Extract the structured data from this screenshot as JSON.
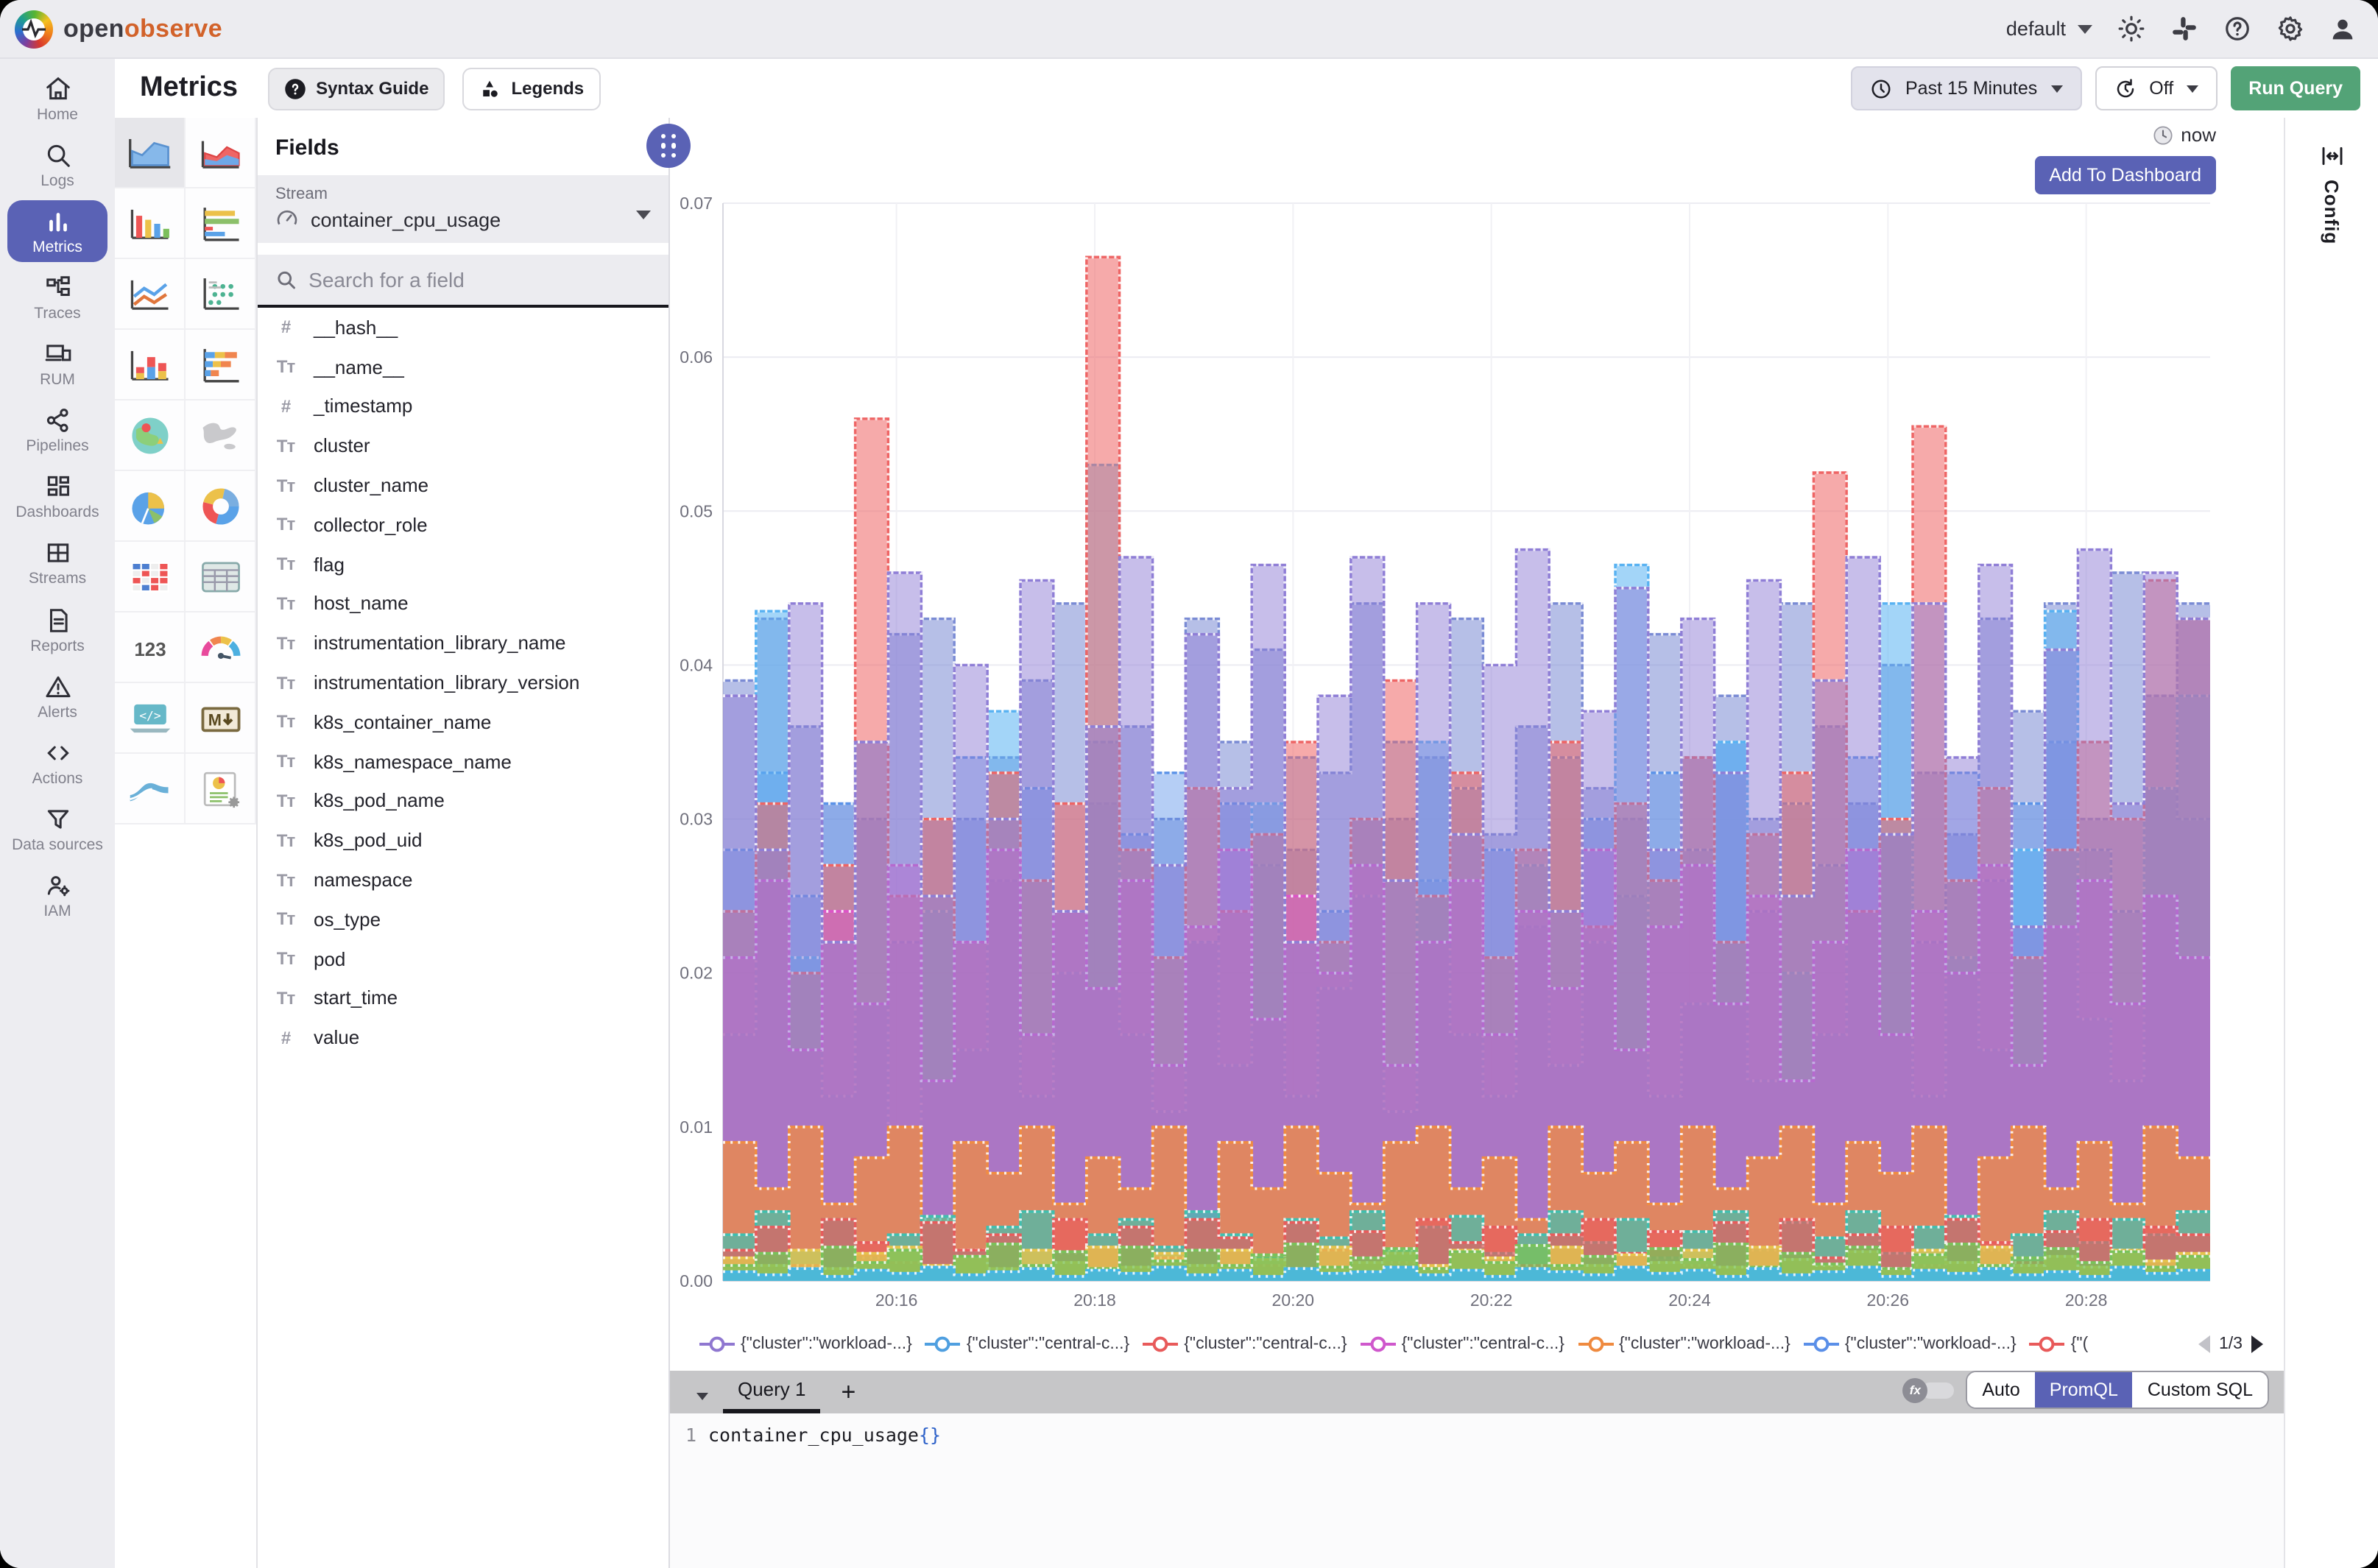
{
  "topbar": {
    "brand_open": "open",
    "brand_observe": "observe",
    "org": "default"
  },
  "sidebar": {
    "items": [
      {
        "label": "Home",
        "icon": "home",
        "selected": false
      },
      {
        "label": "Logs",
        "icon": "logs",
        "selected": false
      },
      {
        "label": "Metrics",
        "icon": "metrics",
        "selected": true
      },
      {
        "label": "Traces",
        "icon": "traces",
        "selected": false
      },
      {
        "label": "RUM",
        "icon": "rum",
        "selected": false
      },
      {
        "label": "Pipelines",
        "icon": "pipelines",
        "selected": false
      },
      {
        "label": "Dashboards",
        "icon": "dashboards",
        "selected": false
      },
      {
        "label": "Streams",
        "icon": "streams",
        "selected": false
      },
      {
        "label": "Reports",
        "icon": "reports",
        "selected": false
      },
      {
        "label": "Alerts",
        "icon": "alerts",
        "selected": false
      },
      {
        "label": "Actions",
        "icon": "actions",
        "selected": false
      },
      {
        "label": "Data sources",
        "icon": "datasources",
        "selected": false
      },
      {
        "label": "IAM",
        "icon": "iam",
        "selected": false
      }
    ]
  },
  "header": {
    "title": "Metrics",
    "syntax_guide": "Syntax Guide",
    "legends": "Legends",
    "time_range": "Past 15 Minutes",
    "refresh": "Off",
    "run_query": "Run Query"
  },
  "chart_types": [
    {
      "name": "area",
      "selected": true
    },
    {
      "name": "area-stacked",
      "selected": false
    },
    {
      "name": "bar",
      "selected": false
    },
    {
      "name": "h-bar",
      "selected": false
    },
    {
      "name": "line",
      "selected": false
    },
    {
      "name": "scatter",
      "selected": false
    },
    {
      "name": "stacked-bar",
      "selected": false
    },
    {
      "name": "h-stacked-bar",
      "selected": false
    },
    {
      "name": "geomap",
      "selected": false
    },
    {
      "name": "maps",
      "selected": false
    },
    {
      "name": "pie",
      "selected": false
    },
    {
      "name": "donut",
      "selected": false
    },
    {
      "name": "heatmap",
      "selected": false
    },
    {
      "name": "table",
      "selected": false
    },
    {
      "name": "metric-text",
      "selected": false
    },
    {
      "name": "gauge",
      "selected": false
    },
    {
      "name": "html",
      "selected": false
    },
    {
      "name": "markdown",
      "selected": false
    },
    {
      "name": "sankey",
      "selected": false
    },
    {
      "name": "custom-chart",
      "selected": false
    }
  ],
  "fields_panel": {
    "title": "Fields",
    "stream_label": "Stream",
    "stream_value": "container_cpu_usage",
    "search_placeholder": "Search for a field",
    "fields": [
      {
        "name": "__hash__",
        "type": "number"
      },
      {
        "name": "__name__",
        "type": "text"
      },
      {
        "name": "_timestamp",
        "type": "number"
      },
      {
        "name": "cluster",
        "type": "text"
      },
      {
        "name": "cluster_name",
        "type": "text"
      },
      {
        "name": "collector_role",
        "type": "text"
      },
      {
        "name": "flag",
        "type": "text"
      },
      {
        "name": "host_name",
        "type": "text"
      },
      {
        "name": "instrumentation_library_name",
        "type": "text"
      },
      {
        "name": "instrumentation_library_version",
        "type": "text"
      },
      {
        "name": "k8s_container_name",
        "type": "text"
      },
      {
        "name": "k8s_namespace_name",
        "type": "text"
      },
      {
        "name": "k8s_pod_name",
        "type": "text"
      },
      {
        "name": "k8s_pod_uid",
        "type": "text"
      },
      {
        "name": "namespace",
        "type": "text"
      },
      {
        "name": "os_type",
        "type": "text"
      },
      {
        "name": "pod",
        "type": "text"
      },
      {
        "name": "start_time",
        "type": "text"
      },
      {
        "name": "value",
        "type": "number"
      }
    ]
  },
  "chart": {
    "now": "now",
    "add_to_dashboard": "Add To Dashboard",
    "config_tab": "Config"
  },
  "legend": {
    "page": "1/3",
    "items": [
      {
        "color": "#8f77d0",
        "label": "{\"cluster\":\"workload-...}"
      },
      {
        "color": "#4f9fe0",
        "label": "{\"cluster\":\"central-c...}"
      },
      {
        "color": "#e85a5a",
        "label": "{\"cluster\":\"central-c...}"
      },
      {
        "color": "#cf58cc",
        "label": "{\"cluster\":\"central-c...}"
      },
      {
        "color": "#ef8a3f",
        "label": "{\"cluster\":\"workload-...}"
      },
      {
        "color": "#5a8fe8",
        "label": "{\"cluster\":\"workload-...}"
      },
      {
        "color": "#e85a5a",
        "label": "{\"("
      }
    ]
  },
  "chart_data": {
    "type": "area",
    "title": "",
    "xlabel": "",
    "ylabel": "",
    "ylim": [
      0,
      0.07
    ],
    "y_tick_labels": [
      "0.07",
      "0.06",
      "0.05",
      "0.04",
      "0.03",
      "0.02",
      "0.01",
      "0.00"
    ],
    "x_ticks": [
      "20:16",
      "20:18",
      "20:20",
      "20:22",
      "20:24",
      "20:26",
      "20:28"
    ],
    "grid": true,
    "legend_position": "bottom",
    "series": [
      {
        "name": "slate-blue",
        "color": "#7a8bd4",
        "fill_opacity": 0.55,
        "values": [
          0.039,
          0.043,
          0.036,
          0.031,
          0.03,
          0.042,
          0.043,
          0.03,
          0.034,
          0.039,
          0.044,
          0.031,
          0.036,
          0.03,
          0.043,
          0.035,
          0.041,
          0.028,
          0.033,
          0.044,
          0.03,
          0.034,
          0.043,
          0.029,
          0.036,
          0.044,
          0.032,
          0.03,
          0.042,
          0.034,
          0.038,
          0.03,
          0.044,
          0.036,
          0.031,
          0.04,
          0.033,
          0.029,
          0.043,
          0.037,
          0.044,
          0.03,
          0.046,
          0.038,
          0.044
        ]
      },
      {
        "name": "blue",
        "color": "#5b93e8",
        "fill_opacity": 0.45,
        "values": [
          0.028,
          0.033,
          0.025,
          0.031,
          0.035,
          0.022,
          0.03,
          0.034,
          0.026,
          0.032,
          0.024,
          0.035,
          0.029,
          0.033,
          0.022,
          0.031,
          0.027,
          0.034,
          0.024,
          0.03,
          0.035,
          0.026,
          0.032,
          0.028,
          0.023,
          0.034,
          0.03,
          0.025,
          0.033,
          0.028,
          0.035,
          0.024,
          0.031,
          0.027,
          0.034,
          0.029,
          0.022,
          0.033,
          0.026,
          0.031,
          0.035,
          0.028,
          0.024,
          0.032,
          0.03
        ]
      },
      {
        "name": "light-blue",
        "color": "#58b2f2",
        "fill_opacity": 0.55,
        "values": [
          0.016,
          0.0435,
          0.021,
          0.012,
          0.018,
          0.01,
          0.024,
          0.015,
          0.037,
          0.012,
          0.02,
          0.053,
          0.016,
          0.011,
          0.022,
          0.014,
          0.031,
          0.012,
          0.019,
          0.025,
          0.011,
          0.035,
          0.016,
          0.012,
          0.027,
          0.014,
          0.022,
          0.0465,
          0.012,
          0.018,
          0.035,
          0.013,
          0.02,
          0.016,
          0.024,
          0.044,
          0.012,
          0.021,
          0.015,
          0.028,
          0.0435,
          0.017,
          0.013,
          0.032,
          0.038
        ]
      },
      {
        "name": "red",
        "color": "#ee6565",
        "fill_opacity": 0.55,
        "values": [
          0.024,
          0.031,
          0.02,
          0.027,
          0.056,
          0.025,
          0.03,
          0.022,
          0.033,
          0.026,
          0.031,
          0.0665,
          0.028,
          0.021,
          0.032,
          0.024,
          0.029,
          0.035,
          0.022,
          0.03,
          0.039,
          0.025,
          0.033,
          0.021,
          0.028,
          0.035,
          0.023,
          0.031,
          0.026,
          0.034,
          0.022,
          0.029,
          0.033,
          0.0525,
          0.024,
          0.03,
          0.0555,
          0.026,
          0.032,
          0.021,
          0.028,
          0.035,
          0.03,
          0.0455,
          0.043
        ]
      },
      {
        "name": "magenta",
        "color": "#dd54c8",
        "fill_opacity": 0.45,
        "values": [
          0.021,
          0.026,
          0.015,
          0.024,
          0.018,
          0.027,
          0.013,
          0.022,
          0.028,
          0.016,
          0.024,
          0.019,
          0.026,
          0.014,
          0.023,
          0.028,
          0.017,
          0.025,
          0.02,
          0.027,
          0.014,
          0.022,
          0.026,
          0.016,
          0.024,
          0.019,
          0.028,
          0.015,
          0.023,
          0.027,
          0.018,
          0.025,
          0.013,
          0.022,
          0.028,
          0.016,
          0.024,
          0.02,
          0.027,
          0.014,
          0.023,
          0.026,
          0.018,
          0.025,
          0.021
        ]
      },
      {
        "name": "purple",
        "color": "#8f7ed6",
        "fill_opacity": 0.5,
        "values": [
          0.038,
          0.028,
          0.044,
          0.022,
          0.035,
          0.046,
          0.025,
          0.04,
          0.03,
          0.0455,
          0.024,
          0.036,
          0.047,
          0.027,
          0.042,
          0.032,
          0.0465,
          0.022,
          0.038,
          0.047,
          0.026,
          0.044,
          0.029,
          0.04,
          0.0475,
          0.024,
          0.037,
          0.045,
          0.028,
          0.043,
          0.033,
          0.0455,
          0.025,
          0.039,
          0.047,
          0.029,
          0.044,
          0.034,
          0.0465,
          0.023,
          0.041,
          0.0475,
          0.031,
          0.046,
          0.043
        ]
      },
      {
        "name": "orange",
        "color": "#f08c42",
        "fill_opacity": 0.75,
        "values": [
          0.009,
          0.006,
          0.01,
          0.005,
          0.008,
          0.01,
          0.004,
          0.009,
          0.007,
          0.01,
          0.005,
          0.008,
          0.006,
          0.01,
          0.004,
          0.009,
          0.006,
          0.01,
          0.007,
          0.005,
          0.009,
          0.01,
          0.006,
          0.008,
          0.004,
          0.01,
          0.007,
          0.009,
          0.005,
          0.01,
          0.006,
          0.008,
          0.01,
          0.005,
          0.009,
          0.007,
          0.01,
          0.004,
          0.008,
          0.01,
          0.006,
          0.009,
          0.005,
          0.01,
          0.008
        ]
      },
      {
        "name": "teal",
        "color": "#3fc0b0",
        "fill_opacity": 0.7,
        "values": [
          0.003,
          0.0045,
          0.002,
          0.004,
          0.0015,
          0.003,
          0.0042,
          0.002,
          0.0035,
          0.0045,
          0.0018,
          0.003,
          0.004,
          0.0022,
          0.0045,
          0.003,
          0.0015,
          0.004,
          0.0028,
          0.0045,
          0.002,
          0.0035,
          0.0042,
          0.0018,
          0.003,
          0.0045,
          0.0025,
          0.004,
          0.0015,
          0.0032,
          0.0045,
          0.002,
          0.0038,
          0.0028,
          0.0045,
          0.0018,
          0.0035,
          0.0042,
          0.002,
          0.003,
          0.0045,
          0.0025,
          0.004,
          0.003,
          0.0045
        ]
      },
      {
        "name": "red-small",
        "color": "#e85c5c",
        "fill_opacity": 0.7,
        "values": [
          0.002,
          0.0035,
          0.001,
          0.004,
          0.0025,
          0.0012,
          0.0038,
          0.002,
          0.003,
          0.001,
          0.004,
          0.0022,
          0.0035,
          0.0015,
          0.004,
          0.0028,
          0.001,
          0.0038,
          0.002,
          0.0032,
          0.0012,
          0.004,
          0.0025,
          0.0035,
          0.001,
          0.003,
          0.004,
          0.0018,
          0.0032,
          0.001,
          0.0038,
          0.0022,
          0.004,
          0.0015,
          0.003,
          0.0035,
          0.001,
          0.004,
          0.0025,
          0.0012,
          0.0032,
          0.004,
          0.002,
          0.0035,
          0.003
        ]
      },
      {
        "name": "yellow",
        "color": "#e6c44c",
        "fill_opacity": 0.8,
        "values": [
          0.0015,
          0.001,
          0.002,
          0.0008,
          0.0018,
          0.0022,
          0.001,
          0.0016,
          0.0008,
          0.002,
          0.0012,
          0.0022,
          0.0009,
          0.0018,
          0.001,
          0.002,
          0.0014,
          0.0008,
          0.0022,
          0.0012,
          0.0018,
          0.001,
          0.002,
          0.0015,
          0.0008,
          0.0022,
          0.001,
          0.0017,
          0.0012,
          0.002,
          0.0009,
          0.0022,
          0.0014,
          0.001,
          0.0019,
          0.0008,
          0.002,
          0.0012,
          0.0022,
          0.001,
          0.0016,
          0.0009,
          0.002,
          0.0013,
          0.0018
        ]
      },
      {
        "name": "green",
        "color": "#78c35a",
        "fill_opacity": 0.75,
        "values": [
          0.001,
          0.0018,
          0.0008,
          0.0022,
          0.0012,
          0.002,
          0.0009,
          0.0016,
          0.0024,
          0.001,
          0.0019,
          0.0008,
          0.0022,
          0.0013,
          0.002,
          0.001,
          0.0017,
          0.0024,
          0.0009,
          0.0015,
          0.0021,
          0.0008,
          0.0019,
          0.0012,
          0.0023,
          0.001,
          0.0016,
          0.0008,
          0.0021,
          0.0014,
          0.0024,
          0.0009,
          0.0018,
          0.0011,
          0.0022,
          0.0008,
          0.0017,
          0.0024,
          0.001,
          0.0015,
          0.0021,
          0.0012,
          0.0019,
          0.0009,
          0.0016
        ]
      },
      {
        "name": "cyan",
        "color": "#45b7e6",
        "fill_opacity": 0.9,
        "values": [
          0.0006,
          0.0004,
          0.0008,
          0.0003,
          0.0007,
          0.0005,
          0.0009,
          0.0004,
          0.0006,
          0.0008,
          0.0003,
          0.0007,
          0.0005,
          0.0009,
          0.0004,
          0.0007,
          0.0003,
          0.0008,
          0.0005,
          0.0006,
          0.0009,
          0.0004,
          0.0007,
          0.0003,
          0.0008,
          0.0006,
          0.0004,
          0.0009,
          0.0005,
          0.0007,
          0.0003,
          0.0008,
          0.0004,
          0.0006,
          0.0009,
          0.0003,
          0.0007,
          0.0005,
          0.0008,
          0.0004,
          0.0006,
          0.0003,
          0.0009,
          0.0005,
          0.0007
        ]
      }
    ]
  },
  "query": {
    "tab": "Query 1",
    "add": "+",
    "modes": [
      "Auto",
      "PromQL",
      "Custom SQL"
    ],
    "active_mode": "PromQL",
    "line_number": "1",
    "code_metric": "container_cpu_usage",
    "code_braces": "{}"
  }
}
